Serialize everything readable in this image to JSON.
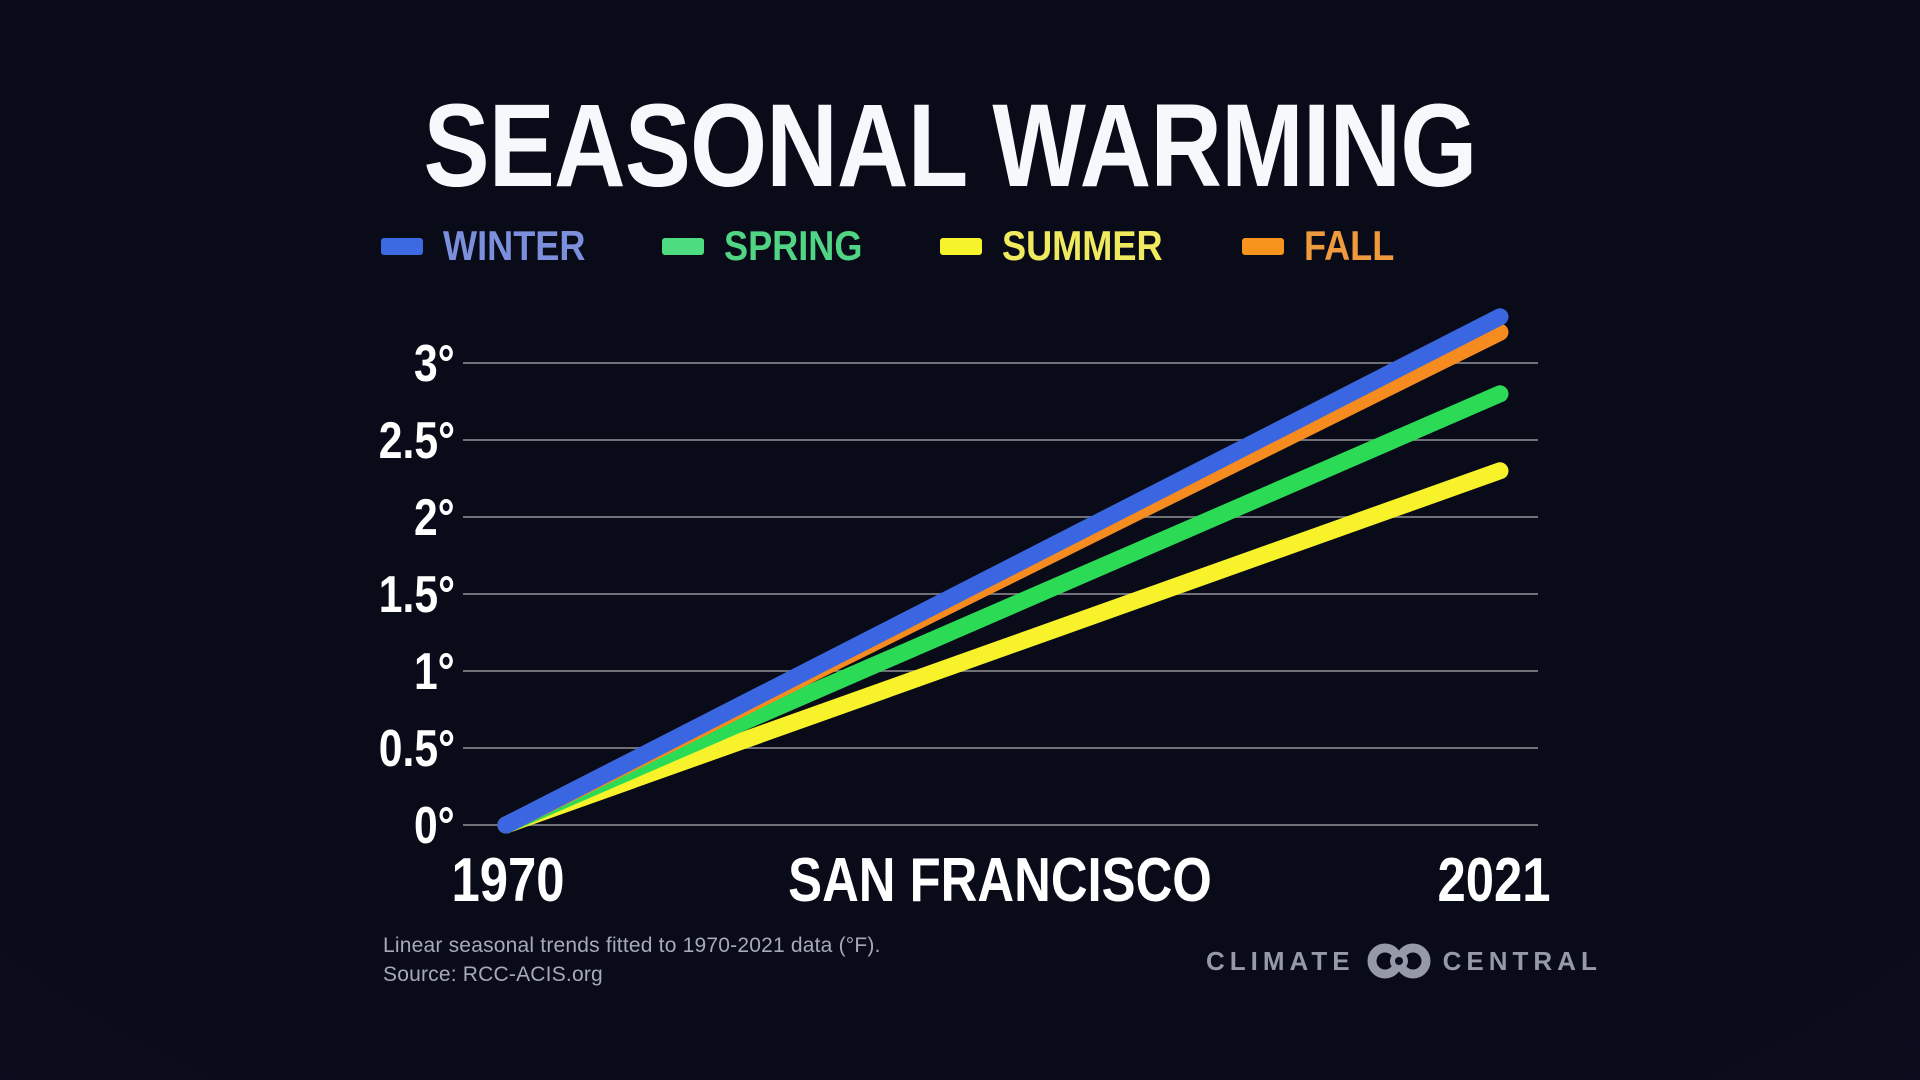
{
  "page": {
    "title": "SEASONAL WARMING"
  },
  "chart_data": {
    "type": "line",
    "title": "SEASONAL WARMING",
    "location": "SAN FRANCISCO",
    "x": [
      1970,
      2021
    ],
    "x_tick_labels": [
      "1970",
      "2021"
    ],
    "xlabel": "SAN FRANCISCO",
    "ylabel": "",
    "units": "°F",
    "ylim": [
      0,
      3.5
    ],
    "yticks": [
      0,
      0.5,
      1,
      1.5,
      2,
      2.5,
      3
    ],
    "ytick_labels": [
      "0°",
      "0.5°",
      "1°",
      "1.5°",
      "2°",
      "2.5°",
      "3°"
    ],
    "grid": "horizontal",
    "legend_position": "top",
    "series": [
      {
        "name": "WINTER",
        "values": [
          0,
          3.3
        ],
        "color": "#3A67E1",
        "swatch_color": "#3C6AE3",
        "label_color": "#7B8FDC"
      },
      {
        "name": "SPRING",
        "values": [
          0,
          2.8
        ],
        "color": "#2BDB55",
        "swatch_color": "#4DDC7F",
        "label_color": "#4FD584"
      },
      {
        "name": "SUMMER",
        "values": [
          0,
          2.3
        ],
        "color": "#F8F22B",
        "swatch_color": "#F6F32A",
        "label_color": "#F0EB5E"
      },
      {
        "name": "FALL",
        "values": [
          0,
          3.2
        ],
        "color": "#F68B1F",
        "swatch_color": "#F7941E",
        "label_color": "#F09A3E"
      }
    ],
    "draw_order": [
      "SUMMER",
      "SPRING",
      "FALL",
      "WINTER"
    ]
  },
  "footer": {
    "note_line1": "Linear seasonal trends fitted to 1970-2021 data (°F).",
    "note_line2": "Source: RCC-ACIS.org",
    "logo_left": "CLIMATE",
    "logo_right": "CENTRAL"
  }
}
